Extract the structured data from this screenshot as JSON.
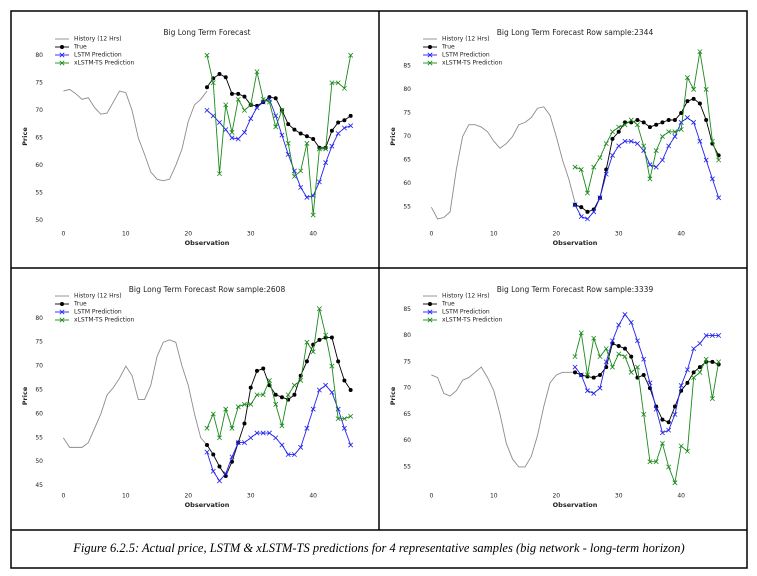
{
  "chart_data": [
    {
      "type": "line",
      "title": "Big Long Term Forecast",
      "xlabel": "Observation",
      "ylabel": "Price",
      "x": [
        0,
        1,
        2,
        3,
        4,
        5,
        6,
        7,
        8,
        9,
        10,
        11,
        12,
        13,
        14,
        15,
        16,
        17,
        18,
        19,
        20,
        21,
        22,
        23,
        24,
        25,
        26,
        27,
        28,
        29,
        30,
        31,
        32,
        33,
        34,
        35,
        36,
        37,
        38,
        39,
        40,
        41,
        42,
        43,
        44,
        45,
        46
      ],
      "xlim": [
        -2.3,
        48.3
      ],
      "xticks": [
        0,
        10,
        20,
        30,
        40
      ],
      "ylim": [
        49,
        81.5
      ],
      "yticks": [
        50,
        55,
        60,
        65,
        70,
        75,
        80
      ],
      "grid": false,
      "legend": "upper left",
      "series": [
        {
          "name": "History (12 Hrs)",
          "color": "#8c8c8c",
          "values": [
            73.5,
            73.8,
            73,
            72,
            72.3,
            70.5,
            69.3,
            69.5,
            71.5,
            73.5,
            73.2,
            70,
            65,
            62,
            58.8,
            57.5,
            57.2,
            57.5,
            60,
            63,
            68,
            71,
            72,
            73.5,
            null,
            null,
            null,
            null,
            null,
            null,
            null,
            null,
            null,
            null,
            null,
            null,
            null,
            null,
            null,
            null,
            null,
            null,
            null,
            null,
            null,
            null,
            null
          ]
        },
        {
          "name": "True",
          "color": "#000000",
          "marker": "o",
          "values": [
            null,
            null,
            null,
            null,
            null,
            null,
            null,
            null,
            null,
            null,
            null,
            null,
            null,
            null,
            null,
            null,
            null,
            null,
            null,
            null,
            null,
            null,
            null,
            74.2,
            75.8,
            76.6,
            76,
            73,
            73,
            72.5,
            71,
            70.8,
            71.5,
            72.4,
            72.2,
            70,
            67.5,
            66.5,
            65.8,
            65.3,
            64.8,
            63.2,
            63.2,
            66.3,
            67.8,
            68.2,
            69
          ]
        },
        {
          "name": "LSTM Prediction",
          "color": "#2222ee",
          "marker": "x",
          "values": [
            null,
            null,
            null,
            null,
            null,
            null,
            null,
            null,
            null,
            null,
            null,
            null,
            null,
            null,
            null,
            null,
            null,
            null,
            null,
            null,
            null,
            null,
            null,
            70,
            69,
            67.8,
            66.5,
            65,
            64.8,
            66,
            68.5,
            70.5,
            71.5,
            72,
            69,
            65.5,
            62,
            59,
            56,
            54.2,
            54.5,
            57,
            60.5,
            63.5,
            65.8,
            66.8,
            67.2
          ]
        },
        {
          "name": "xLSTM-TS Prediction",
          "color": "#1a8a1a",
          "marker": "x",
          "values": [
            null,
            null,
            null,
            null,
            null,
            null,
            null,
            null,
            null,
            null,
            null,
            null,
            null,
            null,
            null,
            null,
            null,
            null,
            null,
            null,
            null,
            null,
            null,
            80,
            75,
            58.5,
            71,
            66,
            72,
            70,
            71,
            77,
            72,
            71.5,
            67,
            70,
            64,
            58,
            59,
            64,
            51,
            63,
            63,
            75,
            75,
            74,
            80
          ]
        }
      ]
    },
    {
      "type": "line",
      "title": "Big Long Term Forecast Row sample:2344",
      "xlabel": "Observation",
      "ylabel": "Price",
      "x": [
        0,
        1,
        2,
        3,
        4,
        5,
        6,
        7,
        8,
        9,
        10,
        11,
        12,
        13,
        14,
        15,
        16,
        17,
        18,
        19,
        20,
        21,
        22,
        23,
        24,
        25,
        26,
        27,
        28,
        29,
        30,
        31,
        32,
        33,
        34,
        35,
        36,
        37,
        38,
        39,
        40,
        41,
        42,
        43,
        44,
        45,
        46
      ],
      "xlim": [
        -2.3,
        48.3
      ],
      "xticks": [
        0,
        10,
        20,
        30,
        40
      ],
      "ylim": [
        51,
        89
      ],
      "yticks": [
        55,
        60,
        65,
        70,
        75,
        80,
        85
      ],
      "grid": false,
      "legend": "upper left",
      "series": [
        {
          "name": "History (12 Hrs)",
          "color": "#8c8c8c",
          "values": [
            55,
            52.5,
            52.8,
            54,
            63,
            70,
            72.5,
            72.5,
            72,
            71,
            69,
            67.5,
            68.5,
            70,
            72.5,
            73,
            74,
            76,
            76.3,
            74.5,
            70,
            65,
            61,
            56,
            null,
            null,
            null,
            null,
            null,
            null,
            null,
            null,
            null,
            null,
            null,
            null,
            null,
            null,
            null,
            null,
            null,
            null,
            null,
            null,
            null,
            null,
            null
          ]
        },
        {
          "name": "True",
          "color": "#000000",
          "marker": "o",
          "values": [
            null,
            null,
            null,
            null,
            null,
            null,
            null,
            null,
            null,
            null,
            null,
            null,
            null,
            null,
            null,
            null,
            null,
            null,
            null,
            null,
            null,
            null,
            null,
            55.5,
            55,
            54,
            54.5,
            57,
            63,
            69.5,
            71,
            73,
            73,
            73.5,
            73,
            72,
            72.5,
            73,
            73.5,
            73.5,
            75,
            77.5,
            78,
            77,
            73.5,
            68.5,
            66
          ]
        },
        {
          "name": "LSTM Prediction",
          "color": "#2222ee",
          "marker": "x",
          "values": [
            null,
            null,
            null,
            null,
            null,
            null,
            null,
            null,
            null,
            null,
            null,
            null,
            null,
            null,
            null,
            null,
            null,
            null,
            null,
            null,
            null,
            null,
            null,
            55.5,
            53,
            52.5,
            54,
            57,
            62,
            66,
            68,
            69,
            69,
            68.5,
            67,
            64,
            63.5,
            65,
            68,
            70,
            73,
            74,
            73,
            69,
            65,
            61,
            57
          ]
        },
        {
          "name": "xLSTM-TS Prediction",
          "color": "#1a8a1a",
          "marker": "x",
          "values": [
            null,
            null,
            null,
            null,
            null,
            null,
            null,
            null,
            null,
            null,
            null,
            null,
            null,
            null,
            null,
            null,
            null,
            null,
            null,
            null,
            null,
            null,
            null,
            63.5,
            63,
            58,
            63.5,
            65.5,
            68.5,
            71,
            72,
            72.5,
            73.5,
            72.5,
            68,
            61,
            67,
            70,
            71,
            71,
            71.5,
            82.5,
            80,
            88,
            80,
            69,
            65
          ]
        }
      ]
    },
    {
      "type": "line",
      "title": "Big Long Term Forecast Row sample:2608",
      "xlabel": "Observation",
      "ylabel": "Price",
      "x": [
        0,
        1,
        2,
        3,
        4,
        5,
        6,
        7,
        8,
        9,
        10,
        11,
        12,
        13,
        14,
        15,
        16,
        17,
        18,
        19,
        20,
        21,
        22,
        23,
        24,
        25,
        26,
        27,
        28,
        29,
        30,
        31,
        32,
        33,
        34,
        35,
        36,
        37,
        38,
        39,
        40,
        41,
        42,
        43,
        44,
        45,
        46
      ],
      "xlim": [
        -2.3,
        48.3
      ],
      "xticks": [
        0,
        10,
        20,
        30,
        40
      ],
      "ylim": [
        44.5,
        83
      ],
      "yticks": [
        45,
        50,
        55,
        60,
        65,
        70,
        75,
        80
      ],
      "grid": false,
      "legend": "upper left",
      "series": [
        {
          "name": "History (12 Hrs)",
          "color": "#8c8c8c",
          "values": [
            55,
            53,
            53,
            53,
            54,
            57,
            60,
            64,
            65.5,
            67.5,
            70,
            68,
            63,
            63,
            66,
            72,
            75,
            75.5,
            75,
            70,
            66,
            60,
            55,
            53.5,
            null,
            null,
            null,
            null,
            null,
            null,
            null,
            null,
            null,
            null,
            null,
            null,
            null,
            null,
            null,
            null,
            null,
            null,
            null,
            null,
            null,
            null,
            null
          ]
        },
        {
          "name": "True",
          "color": "#000000",
          "marker": "o",
          "values": [
            null,
            null,
            null,
            null,
            null,
            null,
            null,
            null,
            null,
            null,
            null,
            null,
            null,
            null,
            null,
            null,
            null,
            null,
            null,
            null,
            null,
            null,
            null,
            53.5,
            51.5,
            49,
            47,
            50,
            54,
            58,
            65.5,
            69,
            69.5,
            66,
            64,
            63.5,
            63,
            64,
            68,
            71,
            74.5,
            75.5,
            76,
            76,
            71,
            67,
            65
          ]
        },
        {
          "name": "LSTM Prediction",
          "color": "#2222ee",
          "marker": "x",
          "values": [
            null,
            null,
            null,
            null,
            null,
            null,
            null,
            null,
            null,
            null,
            null,
            null,
            null,
            null,
            null,
            null,
            null,
            null,
            null,
            null,
            null,
            null,
            null,
            52,
            48,
            46,
            47.5,
            51,
            54,
            54,
            55,
            56,
            56,
            56,
            55,
            53.5,
            51.5,
            51.5,
            53,
            57,
            61,
            65,
            66,
            64.5,
            61,
            57,
            53.5
          ]
        },
        {
          "name": "xLSTM-TS Prediction",
          "color": "#1a8a1a",
          "marker": "x",
          "values": [
            null,
            null,
            null,
            null,
            null,
            null,
            null,
            null,
            null,
            null,
            null,
            null,
            null,
            null,
            null,
            null,
            null,
            null,
            null,
            null,
            null,
            null,
            null,
            57,
            60,
            55,
            61,
            57,
            61.5,
            62,
            62,
            64,
            64,
            67,
            62,
            57.5,
            64,
            66,
            67,
            75,
            73,
            82,
            76.5,
            70,
            59,
            59,
            59.5
          ]
        }
      ]
    },
    {
      "type": "line",
      "title": "Big Long Term Forecast Row sample:3339",
      "xlabel": "Observation",
      "ylabel": "Price",
      "x": [
        0,
        1,
        2,
        3,
        4,
        5,
        6,
        7,
        8,
        9,
        10,
        11,
        12,
        13,
        14,
        15,
        16,
        17,
        18,
        19,
        20,
        21,
        22,
        23,
        24,
        25,
        26,
        27,
        28,
        29,
        30,
        31,
        32,
        33,
        34,
        35,
        36,
        37,
        38,
        39,
        40,
        41,
        42,
        43,
        44,
        45,
        46
      ],
      "xlim": [
        -2.3,
        48.3
      ],
      "xticks": [
        0,
        10,
        20,
        30,
        40
      ],
      "ylim": [
        51,
        86
      ],
      "yticks": [
        55,
        60,
        65,
        70,
        75,
        80,
        85
      ],
      "grid": false,
      "legend": "upper left",
      "series": [
        {
          "name": "History (12 Hrs)",
          "color": "#8c8c8c",
          "values": [
            72.5,
            72,
            69,
            68.5,
            69.5,
            71.5,
            72,
            73,
            74,
            72,
            69.5,
            65,
            59.5,
            56.5,
            55,
            55,
            57,
            61,
            66.5,
            71,
            72.5,
            73,
            73,
            73,
            null,
            null,
            null,
            null,
            null,
            null,
            null,
            null,
            null,
            null,
            null,
            null,
            null,
            null,
            null,
            null,
            null,
            null,
            null,
            null,
            null,
            null,
            null
          ]
        },
        {
          "name": "True",
          "color": "#000000",
          "marker": "o",
          "values": [
            null,
            null,
            null,
            null,
            null,
            null,
            null,
            null,
            null,
            null,
            null,
            null,
            null,
            null,
            null,
            null,
            null,
            null,
            null,
            null,
            null,
            null,
            null,
            73,
            72.5,
            72.2,
            72,
            72.5,
            74,
            78.5,
            78,
            77.5,
            76,
            72,
            72.5,
            70,
            66.5,
            64,
            63.5,
            66.5,
            69.5,
            71,
            73,
            74,
            75,
            75,
            74.5
          ]
        },
        {
          "name": "LSTM Prediction",
          "color": "#2222ee",
          "marker": "x",
          "values": [
            null,
            null,
            null,
            null,
            null,
            null,
            null,
            null,
            null,
            null,
            null,
            null,
            null,
            null,
            null,
            null,
            null,
            null,
            null,
            null,
            null,
            null,
            null,
            74,
            72.5,
            69.5,
            69,
            70,
            75,
            79,
            82,
            84,
            82.5,
            79,
            75.5,
            71,
            66,
            61.5,
            62,
            65,
            70.5,
            73.5,
            77.5,
            78.5,
            80,
            80,
            80
          ]
        },
        {
          "name": "xLSTM-TS Prediction",
          "color": "#1a8a1a",
          "marker": "x",
          "values": [
            null,
            null,
            null,
            null,
            null,
            null,
            null,
            null,
            null,
            null,
            null,
            null,
            null,
            null,
            null,
            null,
            null,
            null,
            null,
            null,
            null,
            null,
            null,
            76,
            80.5,
            72.5,
            79.5,
            76,
            77.5,
            74,
            76.5,
            76,
            73,
            74,
            65,
            56,
            56,
            59.5,
            55,
            52,
            59,
            58,
            72,
            73,
            75.5,
            68,
            75
          ]
        }
      ]
    }
  ],
  "caption": "Figure 6.2.5: Actual price, LSTM & xLSTM-TS predictions for 4 representative samples (big network - long-term horizon)"
}
